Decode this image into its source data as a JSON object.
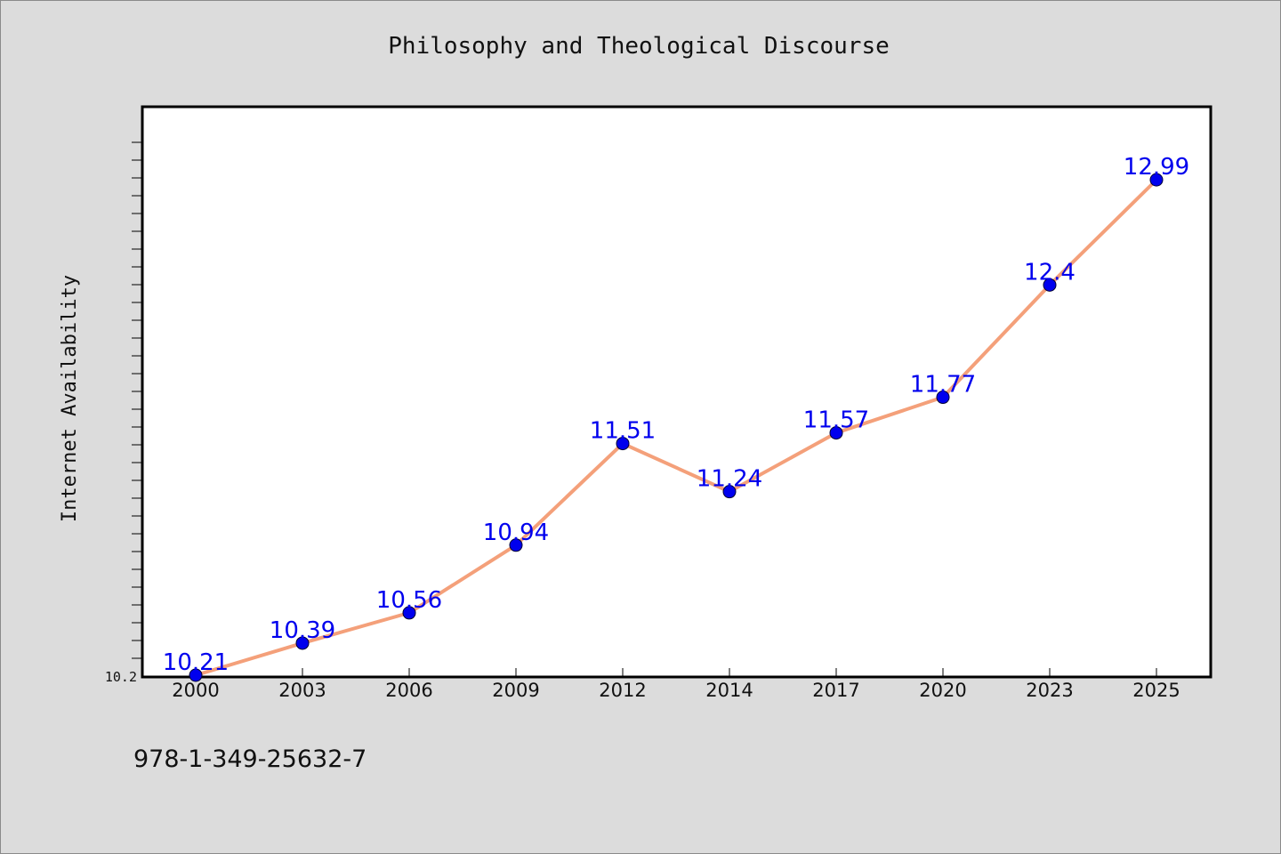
{
  "chart_data": {
    "type": "line",
    "title": "Philosophy and Theological Discourse",
    "xlabel": "",
    "ylabel": "Internet Availability",
    "categories": [
      "2000",
      "2003",
      "2006",
      "2009",
      "2012",
      "2014",
      "2017",
      "2020",
      "2023",
      "2025"
    ],
    "series": [
      {
        "values": [
          10.21,
          10.39,
          10.56,
          10.94,
          11.51,
          11.24,
          11.57,
          11.77,
          12.4,
          12.99
        ]
      }
    ],
    "ylim": [
      10.2,
      13.4
    ],
    "y_tick_labels": [
      "10.2"
    ],
    "line_color": "#f4a07a",
    "marker_color": "#0000ee",
    "label_color": "#0000ee",
    "grid": false
  },
  "footer": {
    "isbn": "978-1-349-25632-7"
  }
}
